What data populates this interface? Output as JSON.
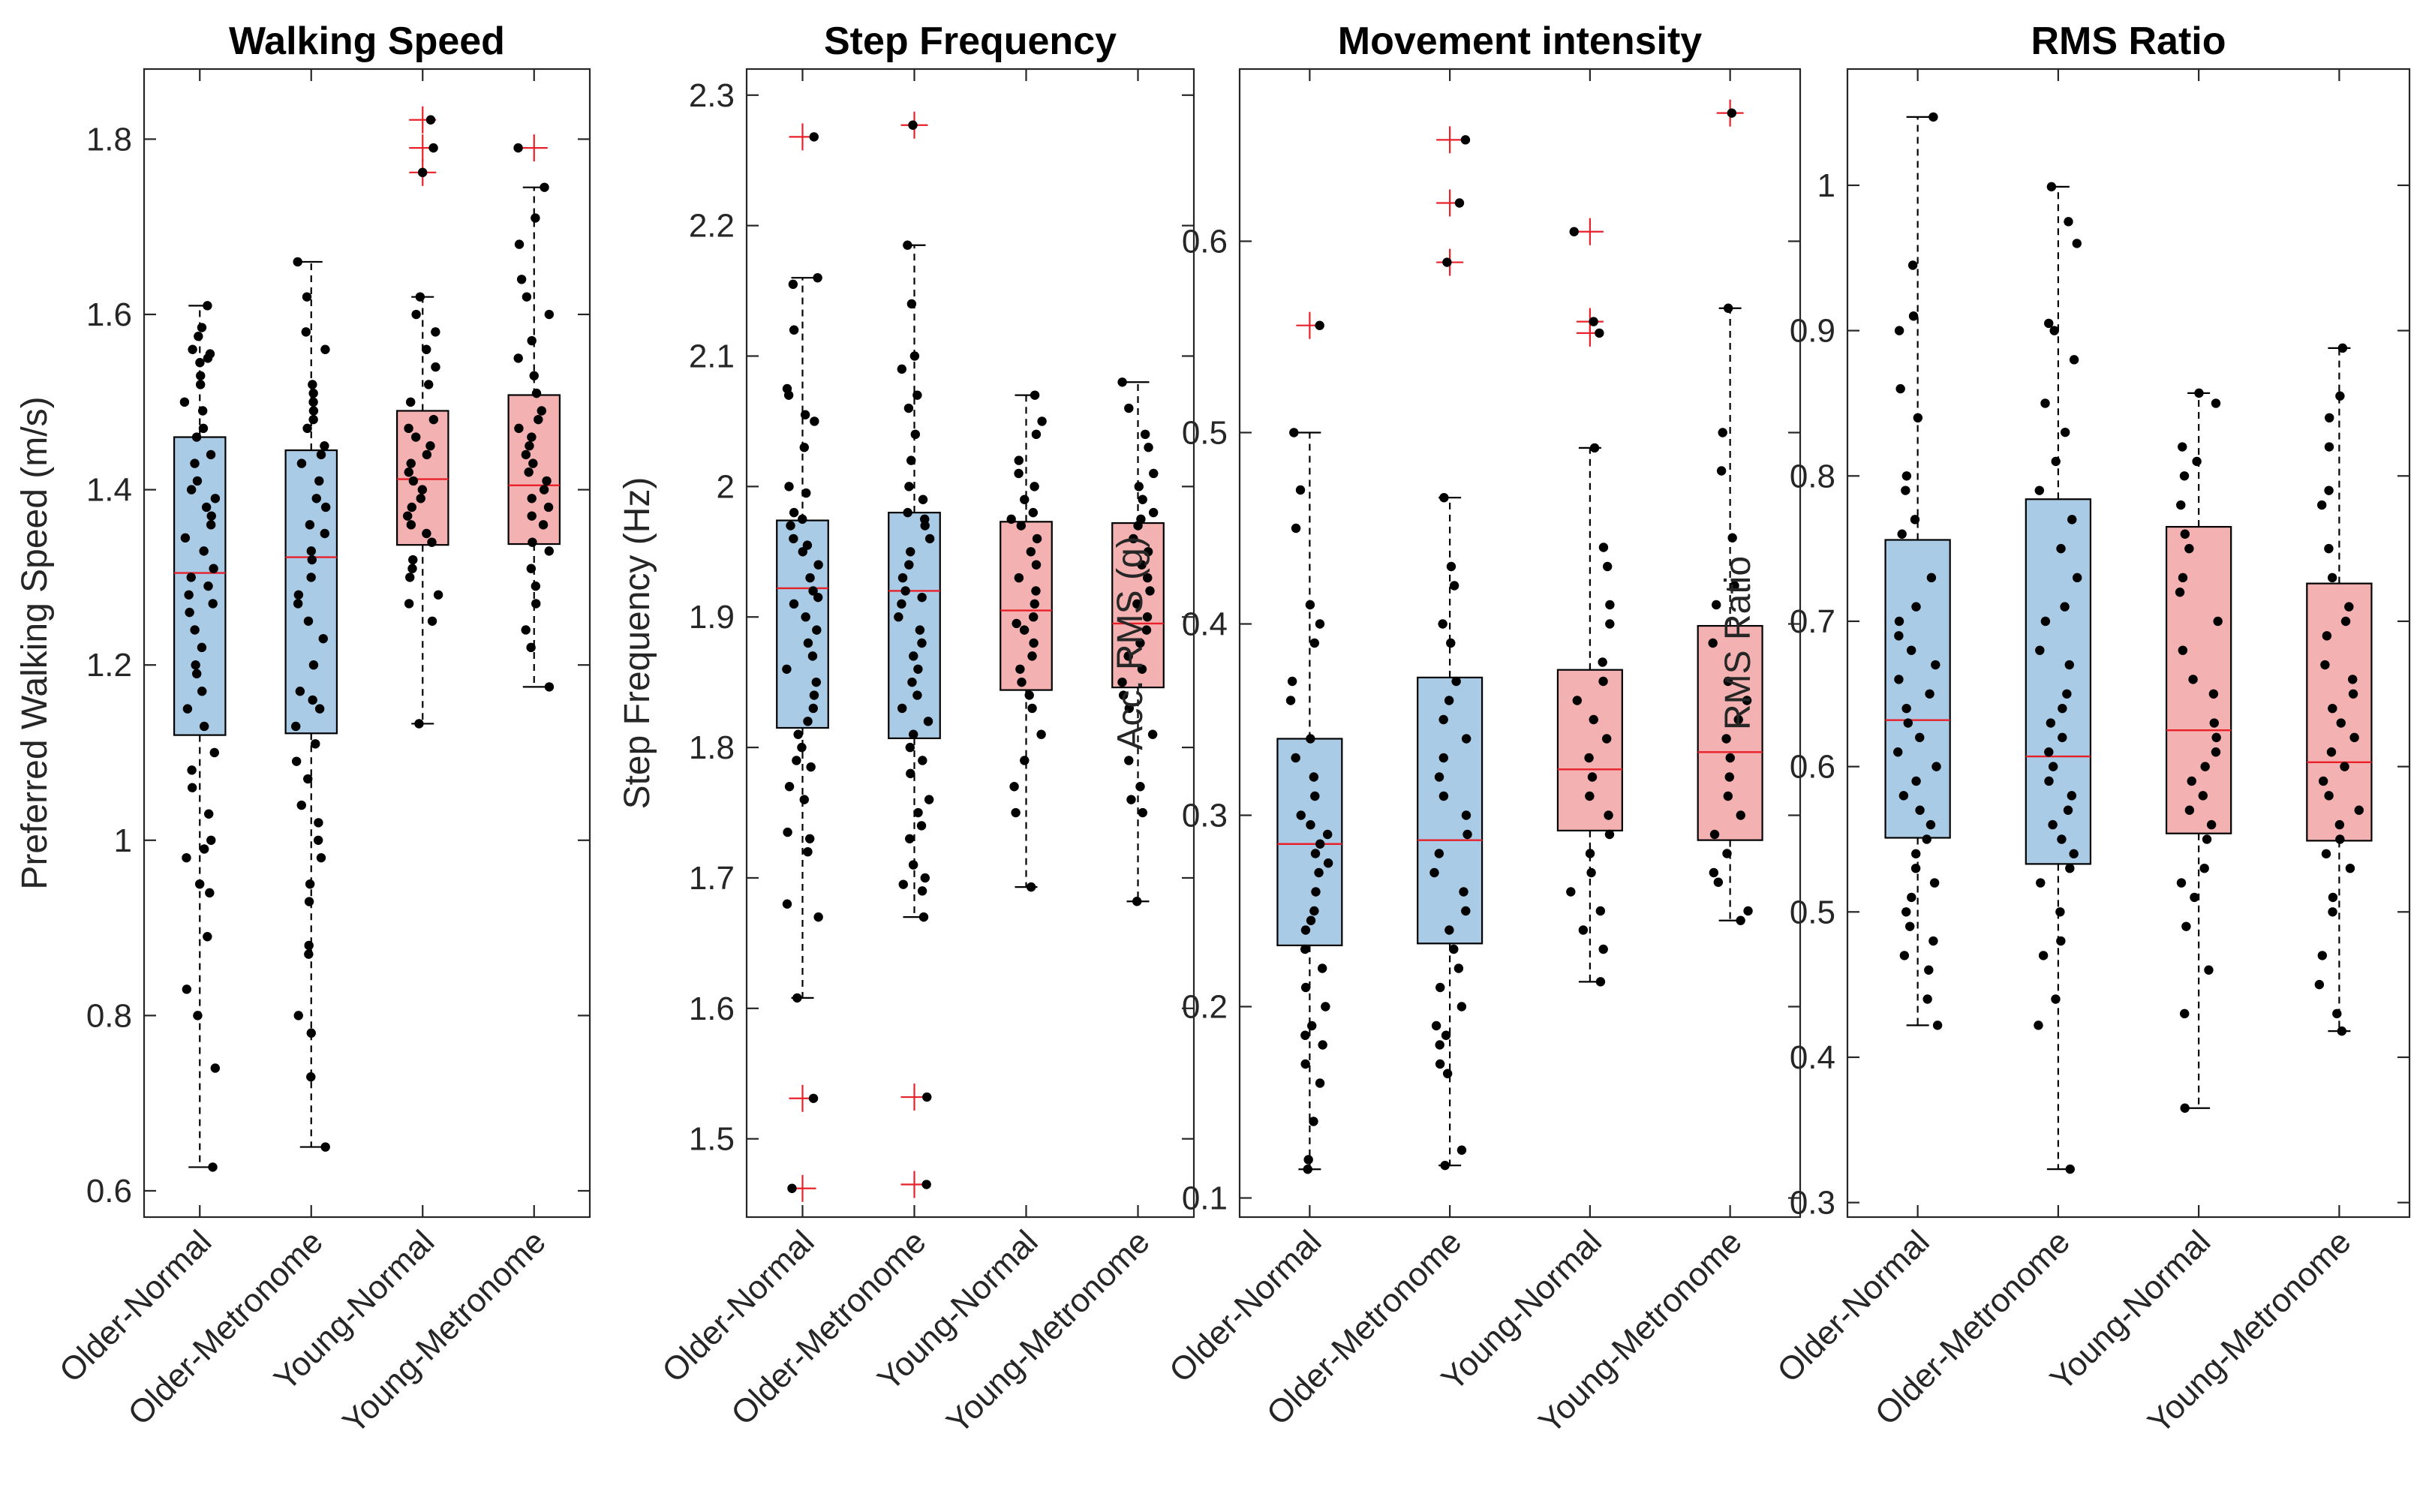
{
  "colors": {
    "older_box": "#a9cbe6",
    "young_box": "#f4b1b1",
    "median": "#e8202a",
    "outlier": "#e8202a",
    "points": "#000000",
    "axis": "#262626"
  },
  "chart_data": [
    {
      "type": "box",
      "title": "Walking Speed",
      "xlabel": "",
      "ylabel": "Preferred Walking Speed (m/s)",
      "ylim": [
        0.57,
        1.88
      ],
      "yticks": [
        0.6,
        0.8,
        1,
        1.2,
        1.4,
        1.6,
        1.8
      ],
      "yticklabels": [
        "0.6",
        "0.8",
        "1",
        "1.2",
        "1.4",
        "1.6",
        "1.8"
      ],
      "categories": [
        "Older-Normal",
        "Older-Metronome",
        "Young-Normal",
        "Young-Metronome"
      ],
      "groups": [
        {
          "name": "Older-Normal",
          "color": "older",
          "whisker_low": 0.627,
          "q1": 1.12,
          "median": 1.305,
          "q3": 1.46,
          "whisker_high": 1.61,
          "outliers": [],
          "points": [
            1.61,
            1.585,
            1.575,
            1.56,
            1.555,
            1.55,
            1.545,
            1.53,
            1.52,
            1.5,
            1.49,
            1.47,
            1.46,
            1.44,
            1.43,
            1.41,
            1.4,
            1.39,
            1.38,
            1.37,
            1.36,
            1.345,
            1.33,
            1.31,
            1.3,
            1.29,
            1.28,
            1.27,
            1.26,
            1.24,
            1.22,
            1.2,
            1.19,
            1.17,
            1.15,
            1.13,
            1.1,
            1.08,
            1.06,
            1.03,
            1.0,
            0.99,
            0.98,
            0.95,
            0.94,
            0.89,
            0.83,
            0.8,
            0.74,
            0.627
          ]
        },
        {
          "name": "Older-Metronome",
          "color": "older",
          "whisker_low": 0.65,
          "q1": 1.122,
          "median": 1.323,
          "q3": 1.445,
          "whisker_high": 1.66,
          "outliers": [],
          "points": [
            1.66,
            1.62,
            1.58,
            1.56,
            1.52,
            1.51,
            1.5,
            1.49,
            1.48,
            1.47,
            1.45,
            1.44,
            1.43,
            1.41,
            1.39,
            1.38,
            1.36,
            1.35,
            1.33,
            1.32,
            1.3,
            1.28,
            1.27,
            1.25,
            1.23,
            1.2,
            1.17,
            1.16,
            1.15,
            1.13,
            1.11,
            1.09,
            1.07,
            1.04,
            1.02,
            1.0,
            0.98,
            0.95,
            0.93,
            0.88,
            0.87,
            0.8,
            0.78,
            0.73,
            0.65
          ]
        },
        {
          "name": "Young-Normal",
          "color": "young",
          "whisker_low": 1.133,
          "q1": 1.337,
          "median": 1.412,
          "q3": 1.49,
          "whisker_high": 1.62,
          "outliers": [
            1.822,
            1.79,
            1.762
          ],
          "points": [
            1.62,
            1.6,
            1.58,
            1.56,
            1.54,
            1.52,
            1.5,
            1.48,
            1.47,
            1.46,
            1.45,
            1.44,
            1.43,
            1.42,
            1.41,
            1.4,
            1.39,
            1.38,
            1.37,
            1.36,
            1.35,
            1.34,
            1.32,
            1.31,
            1.3,
            1.28,
            1.27,
            1.25,
            1.133,
            1.822,
            1.79,
            1.762
          ]
        },
        {
          "name": "Young-Metronome",
          "color": "young",
          "whisker_low": 1.175,
          "q1": 1.338,
          "median": 1.405,
          "q3": 1.508,
          "whisker_high": 1.745,
          "outliers": [
            1.79
          ],
          "points": [
            1.745,
            1.71,
            1.68,
            1.64,
            1.62,
            1.6,
            1.57,
            1.55,
            1.53,
            1.51,
            1.49,
            1.48,
            1.47,
            1.46,
            1.45,
            1.44,
            1.43,
            1.42,
            1.41,
            1.4,
            1.39,
            1.38,
            1.37,
            1.36,
            1.34,
            1.33,
            1.31,
            1.29,
            1.27,
            1.24,
            1.22,
            1.175,
            1.79
          ]
        }
      ]
    },
    {
      "type": "box",
      "title": "Step Frequency",
      "xlabel": "",
      "ylabel": "Step Frequency (Hz)",
      "ylim": [
        1.44,
        2.32
      ],
      "yticks": [
        1.5,
        1.6,
        1.7,
        1.8,
        1.9,
        2.0,
        2.1,
        2.2,
        2.3
      ],
      "yticklabels": [
        "1.5",
        "1.6",
        "1.7",
        "1.8",
        "1.9",
        "2",
        "2.1",
        "2.2",
        "2.3"
      ],
      "categories": [
        "Older-Normal",
        "Older-Metronome",
        "Young-Normal",
        "Young-Metronome"
      ],
      "groups": [
        {
          "name": "Older-Normal",
          "color": "older",
          "whisker_low": 1.608,
          "q1": 1.815,
          "median": 1.922,
          "q3": 1.974,
          "whisker_high": 2.16,
          "outliers": [
            2.268,
            1.531,
            1.462
          ],
          "points": [
            2.16,
            2.155,
            2.12,
            2.075,
            2.07,
            2.055,
            2.05,
            2.03,
            2.0,
            1.995,
            1.98,
            1.975,
            1.97,
            1.96,
            1.955,
            1.95,
            1.94,
            1.93,
            1.92,
            1.915,
            1.91,
            1.9,
            1.89,
            1.88,
            1.87,
            1.86,
            1.85,
            1.84,
            1.83,
            1.82,
            1.81,
            1.8,
            1.79,
            1.785,
            1.77,
            1.76,
            1.735,
            1.73,
            1.72,
            1.68,
            1.67,
            1.608,
            2.268,
            1.531,
            1.462
          ]
        },
        {
          "name": "Older-Metronome",
          "color": "older",
          "whisker_low": 1.67,
          "q1": 1.807,
          "median": 1.92,
          "q3": 1.98,
          "whisker_high": 2.185,
          "outliers": [
            2.277,
            1.532,
            1.465
          ],
          "points": [
            2.185,
            2.14,
            2.1,
            2.09,
            2.07,
            2.06,
            2.04,
            2.02,
            2.0,
            1.99,
            1.98,
            1.975,
            1.97,
            1.96,
            1.95,
            1.94,
            1.93,
            1.92,
            1.915,
            1.91,
            1.9,
            1.89,
            1.88,
            1.87,
            1.86,
            1.85,
            1.84,
            1.83,
            1.82,
            1.81,
            1.8,
            1.79,
            1.78,
            1.76,
            1.75,
            1.74,
            1.73,
            1.71,
            1.7,
            1.695,
            1.69,
            1.67,
            2.277,
            1.532,
            1.465
          ]
        },
        {
          "name": "Young-Normal",
          "color": "young",
          "whisker_low": 1.693,
          "q1": 1.844,
          "median": 1.905,
          "q3": 1.973,
          "whisker_high": 2.07,
          "outliers": [],
          "points": [
            2.07,
            2.05,
            2.04,
            2.02,
            2.01,
            2.0,
            1.99,
            1.98,
            1.975,
            1.97,
            1.96,
            1.95,
            1.94,
            1.93,
            1.92,
            1.91,
            1.9,
            1.895,
            1.89,
            1.88,
            1.87,
            1.86,
            1.85,
            1.84,
            1.83,
            1.81,
            1.79,
            1.77,
            1.75,
            1.693
          ]
        },
        {
          "name": "Young-Metronome",
          "color": "young",
          "whisker_low": 1.682,
          "q1": 1.846,
          "median": 1.895,
          "q3": 1.972,
          "whisker_high": 2.08,
          "outliers": [],
          "points": [
            2.08,
            2.06,
            2.04,
            2.03,
            2.01,
            2.0,
            1.99,
            1.98,
            1.975,
            1.97,
            1.96,
            1.95,
            1.94,
            1.93,
            1.92,
            1.91,
            1.9,
            1.89,
            1.88,
            1.87,
            1.86,
            1.85,
            1.84,
            1.83,
            1.81,
            1.79,
            1.77,
            1.76,
            1.75,
            1.682
          ]
        }
      ]
    },
    {
      "type": "box",
      "title": "Movement intensity",
      "xlabel": "",
      "ylabel": "Acc. RMS (g)",
      "ylim": [
        0.09,
        0.69
      ],
      "yticks": [
        0.1,
        0.2,
        0.3,
        0.4,
        0.5,
        0.6
      ],
      "yticklabels": [
        "0.1",
        "0.2",
        "0.3",
        "0.4",
        "0.5",
        "0.6"
      ],
      "categories": [
        "Older-Normal",
        "Older-Metronome",
        "Young-Normal",
        "Young-Metronome"
      ],
      "groups": [
        {
          "name": "Older-Normal",
          "color": "older",
          "whisker_low": 0.115,
          "q1": 0.232,
          "median": 0.285,
          "q3": 0.34,
          "whisker_high": 0.5,
          "outliers": [
            0.556
          ],
          "points": [
            0.5,
            0.47,
            0.45,
            0.41,
            0.4,
            0.39,
            0.37,
            0.36,
            0.34,
            0.33,
            0.32,
            0.31,
            0.3,
            0.295,
            0.29,
            0.285,
            0.28,
            0.275,
            0.27,
            0.26,
            0.25,
            0.245,
            0.24,
            0.23,
            0.22,
            0.21,
            0.2,
            0.19,
            0.185,
            0.18,
            0.17,
            0.16,
            0.14,
            0.12,
            0.115,
            0.556
          ]
        },
        {
          "name": "Older-Metronome",
          "color": "older",
          "whisker_low": 0.117,
          "q1": 0.233,
          "median": 0.287,
          "q3": 0.372,
          "whisker_high": 0.466,
          "outliers": [
            0.653,
            0.62,
            0.589
          ],
          "points": [
            0.466,
            0.43,
            0.42,
            0.4,
            0.39,
            0.37,
            0.36,
            0.35,
            0.34,
            0.33,
            0.32,
            0.31,
            0.3,
            0.29,
            0.28,
            0.27,
            0.26,
            0.25,
            0.24,
            0.23,
            0.22,
            0.21,
            0.2,
            0.19,
            0.185,
            0.18,
            0.17,
            0.165,
            0.125,
            0.117,
            0.653,
            0.62,
            0.589
          ]
        },
        {
          "name": "Young-Normal",
          "color": "young",
          "whisker_low": 0.213,
          "q1": 0.292,
          "median": 0.324,
          "q3": 0.376,
          "whisker_high": 0.492,
          "outliers": [
            0.605,
            0.558,
            0.552
          ],
          "points": [
            0.492,
            0.44,
            0.43,
            0.41,
            0.4,
            0.38,
            0.37,
            0.36,
            0.35,
            0.34,
            0.33,
            0.32,
            0.31,
            0.3,
            0.29,
            0.28,
            0.27,
            0.26,
            0.25,
            0.24,
            0.23,
            0.213,
            0.605,
            0.558,
            0.552
          ]
        },
        {
          "name": "Young-Metronome",
          "color": "young",
          "whisker_low": 0.245,
          "q1": 0.287,
          "median": 0.333,
          "q3": 0.399,
          "whisker_high": 0.565,
          "outliers": [
            0.667
          ],
          "points": [
            0.565,
            0.5,
            0.48,
            0.445,
            0.42,
            0.41,
            0.39,
            0.37,
            0.36,
            0.35,
            0.34,
            0.33,
            0.32,
            0.31,
            0.3,
            0.29,
            0.28,
            0.27,
            0.265,
            0.25,
            0.245,
            0.667
          ]
        }
      ]
    },
    {
      "type": "box",
      "title": "RMS Ratio",
      "xlabel": "",
      "ylabel": "RMS Ratio",
      "ylim": [
        0.29,
        1.08
      ],
      "yticks": [
        0.3,
        0.4,
        0.5,
        0.6,
        0.7,
        0.8,
        0.9,
        1.0
      ],
      "yticklabels": [
        "0.3",
        "0.4",
        "0.5",
        "0.6",
        "0.7",
        "0.8",
        "0.9",
        "1"
      ],
      "categories": [
        "Older-Normal",
        "Older-Metronome",
        "Young-Normal",
        "Young-Metronome"
      ],
      "groups": [
        {
          "name": "Older-Normal",
          "color": "older",
          "whisker_low": 0.422,
          "q1": 0.551,
          "median": 0.632,
          "q3": 0.756,
          "whisker_high": 1.047,
          "outliers": [],
          "points": [
            1.047,
            0.945,
            0.91,
            0.9,
            0.86,
            0.84,
            0.8,
            0.79,
            0.77,
            0.76,
            0.73,
            0.71,
            0.7,
            0.69,
            0.68,
            0.67,
            0.66,
            0.65,
            0.64,
            0.63,
            0.62,
            0.61,
            0.6,
            0.59,
            0.58,
            0.57,
            0.56,
            0.55,
            0.54,
            0.53,
            0.52,
            0.51,
            0.5,
            0.49,
            0.48,
            0.47,
            0.46,
            0.44,
            0.422
          ]
        },
        {
          "name": "Older-Metronome",
          "color": "older",
          "whisker_low": 0.323,
          "q1": 0.533,
          "median": 0.607,
          "q3": 0.784,
          "whisker_high": 0.999,
          "outliers": [],
          "points": [
            0.999,
            0.975,
            0.96,
            0.905,
            0.9,
            0.88,
            0.85,
            0.83,
            0.81,
            0.79,
            0.77,
            0.75,
            0.73,
            0.71,
            0.7,
            0.68,
            0.67,
            0.65,
            0.64,
            0.63,
            0.62,
            0.61,
            0.6,
            0.59,
            0.58,
            0.57,
            0.56,
            0.55,
            0.54,
            0.53,
            0.52,
            0.5,
            0.48,
            0.47,
            0.44,
            0.422,
            0.323
          ]
        },
        {
          "name": "Young-Normal",
          "color": "young",
          "whisker_low": 0.365,
          "q1": 0.554,
          "median": 0.625,
          "q3": 0.765,
          "whisker_high": 0.857,
          "outliers": [],
          "points": [
            0.857,
            0.85,
            0.82,
            0.81,
            0.8,
            0.78,
            0.76,
            0.75,
            0.73,
            0.72,
            0.7,
            0.68,
            0.66,
            0.65,
            0.63,
            0.62,
            0.61,
            0.6,
            0.59,
            0.58,
            0.57,
            0.56,
            0.55,
            0.53,
            0.52,
            0.51,
            0.49,
            0.46,
            0.43,
            0.365
          ]
        },
        {
          "name": "Young-Metronome",
          "color": "young",
          "whisker_low": 0.418,
          "q1": 0.549,
          "median": 0.603,
          "q3": 0.726,
          "whisker_high": 0.888,
          "outliers": [],
          "points": [
            0.888,
            0.855,
            0.84,
            0.82,
            0.79,
            0.78,
            0.75,
            0.73,
            0.71,
            0.7,
            0.69,
            0.67,
            0.66,
            0.65,
            0.64,
            0.63,
            0.62,
            0.61,
            0.6,
            0.59,
            0.58,
            0.57,
            0.56,
            0.55,
            0.54,
            0.53,
            0.51,
            0.5,
            0.47,
            0.45,
            0.43,
            0.418
          ]
        }
      ]
    }
  ]
}
